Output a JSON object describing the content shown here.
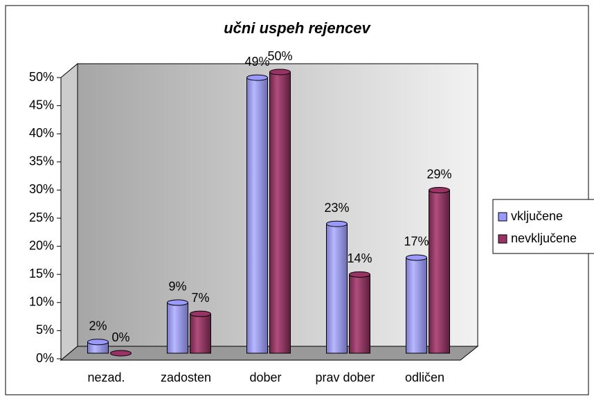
{
  "chart_data": {
    "type": "bar3d",
    "title": "učni uspeh rejencev",
    "categories": [
      "nezad.",
      "zadosten",
      "dober",
      "prav dober",
      "odličen"
    ],
    "series": [
      {
        "name": "vključene",
        "color": "#9999ff",
        "values": [
          2,
          9,
          49,
          23,
          17
        ],
        "value_labels": [
          "2%",
          "9%",
          "49%",
          "23%",
          "17%"
        ]
      },
      {
        "name": "nevključene",
        "color": "#993366",
        "values": [
          0,
          7,
          50,
          14,
          29
        ],
        "value_labels": [
          "0%",
          "7%",
          "50%",
          "14%",
          "29%"
        ]
      }
    ],
    "ylim": [
      0,
      50
    ],
    "yticks": [
      {
        "value": 0,
        "label": "0%"
      },
      {
        "value": 5,
        "label": "5%"
      },
      {
        "value": 10,
        "label": "10%"
      },
      {
        "value": 15,
        "label": "15%"
      },
      {
        "value": 20,
        "label": "20%"
      },
      {
        "value": 25,
        "label": "25%"
      },
      {
        "value": 30,
        "label": "30%"
      },
      {
        "value": 35,
        "label": "35%"
      },
      {
        "value": 40,
        "label": "40%"
      },
      {
        "value": 45,
        "label": "45%"
      },
      {
        "value": 50,
        "label": "50%"
      }
    ],
    "grid": false,
    "legend": "right"
  }
}
